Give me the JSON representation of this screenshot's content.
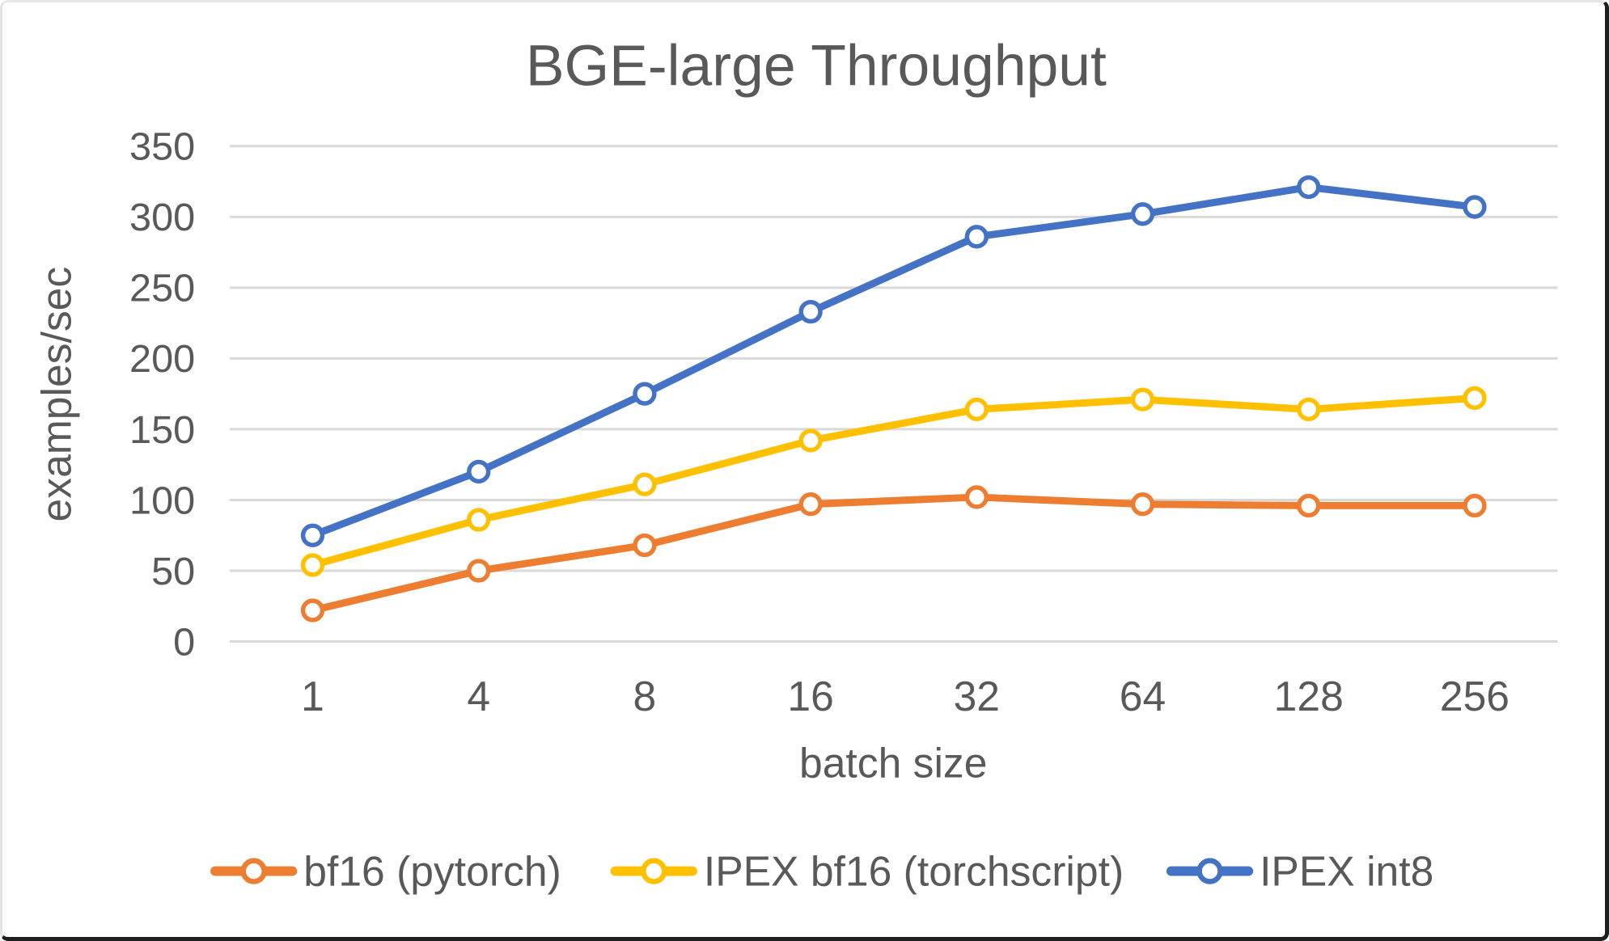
{
  "chart_data": {
    "type": "line",
    "title": "BGE-large Throughput",
    "xlabel": "batch size",
    "ylabel": "examples/sec",
    "categories": [
      "1",
      "4",
      "8",
      "16",
      "32",
      "64",
      "128",
      "256"
    ],
    "y_ticks": [
      0,
      50,
      100,
      150,
      200,
      250,
      300,
      350
    ],
    "ylim": [
      0,
      350
    ],
    "grid": "horizontal",
    "legend_position": "bottom",
    "text_color": "#595959",
    "grid_color": "#d9d9d9",
    "marker": "circle-open",
    "series": [
      {
        "name": "bf16 (pytorch)",
        "color": "#ED7D31",
        "values": [
          22,
          50,
          68,
          97,
          102,
          97,
          96,
          96
        ]
      },
      {
        "name": "IPEX bf16 (torchscript)",
        "color": "#FFC000",
        "values": [
          54,
          86,
          111,
          142,
          164,
          171,
          164,
          172
        ]
      },
      {
        "name": "IPEX int8",
        "color": "#4472C4",
        "values": [
          75,
          120,
          175,
          233,
          286,
          302,
          321,
          307
        ]
      }
    ]
  }
}
